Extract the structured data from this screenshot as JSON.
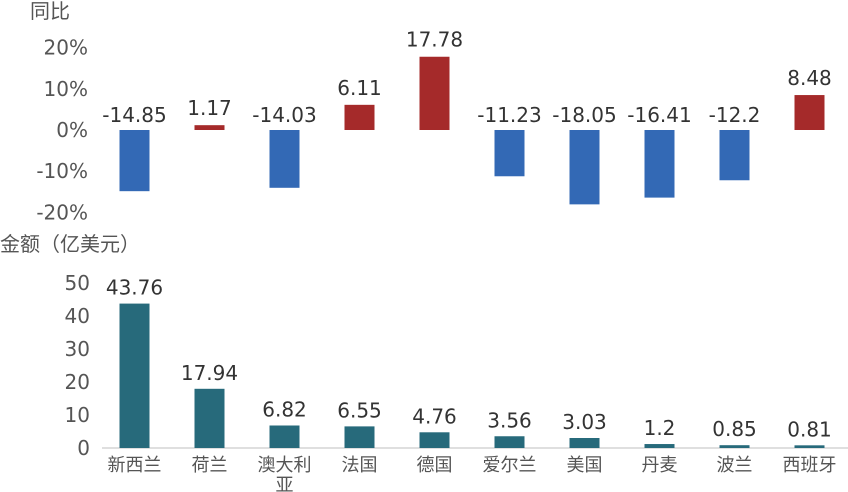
{
  "chart_data": [
    {
      "type": "bar",
      "ylabel": "同比",
      "ytick_labels": [
        "20%",
        "10%",
        "0%",
        "-10%",
        "-20%"
      ],
      "ytick_values": [
        20,
        10,
        0,
        -10,
        -20
      ],
      "ylim": [
        -20,
        20
      ],
      "categories": [
        "新西兰",
        "荷兰",
        "澳大利亚",
        "法国",
        "德国",
        "爱尔兰",
        "美国",
        "丹麦",
        "波兰",
        "西班牙"
      ],
      "values": [
        -14.85,
        1.17,
        -14.03,
        6.11,
        17.78,
        -11.23,
        -18.05,
        -16.41,
        -12.2,
        8.48
      ],
      "value_labels": [
        "-14.85",
        "1.17",
        "-14.03",
        "6.11",
        "17.78",
        "-11.23",
        "-18.05",
        "-16.41",
        "-12.2",
        "8.48"
      ],
      "colors": {
        "positive": "#A52A2A",
        "negative": "#3369B5"
      },
      "grid": false
    },
    {
      "type": "bar",
      "ylabel": "金额（亿美元）",
      "ytick_labels": [
        "50",
        "40",
        "30",
        "20",
        "10",
        "0"
      ],
      "ytick_values": [
        50,
        40,
        30,
        20,
        10,
        0
      ],
      "ylim": [
        0,
        50
      ],
      "categories": [
        "新西兰",
        "荷兰",
        "澳大利亚",
        "法国",
        "德国",
        "爱尔兰",
        "美国",
        "丹麦",
        "波兰",
        "西班牙"
      ],
      "category_lines": [
        [
          "新西兰"
        ],
        [
          "荷兰"
        ],
        [
          "澳大利",
          "亚"
        ],
        [
          "法国"
        ],
        [
          "德国"
        ],
        [
          "爱尔兰"
        ],
        [
          "美国"
        ],
        [
          "丹麦"
        ],
        [
          "波兰"
        ],
        [
          "西班牙"
        ]
      ],
      "values": [
        43.76,
        17.94,
        6.82,
        6.55,
        4.76,
        3.56,
        3.03,
        1.2,
        0.85,
        0.81
      ],
      "value_labels": [
        "43.76",
        "17.94",
        "6.82",
        "6.55",
        "4.76",
        "3.56",
        "3.03",
        "1.2",
        "0.85",
        "0.81"
      ],
      "colors": {
        "bar": "#276A7B"
      },
      "grid": false
    }
  ]
}
